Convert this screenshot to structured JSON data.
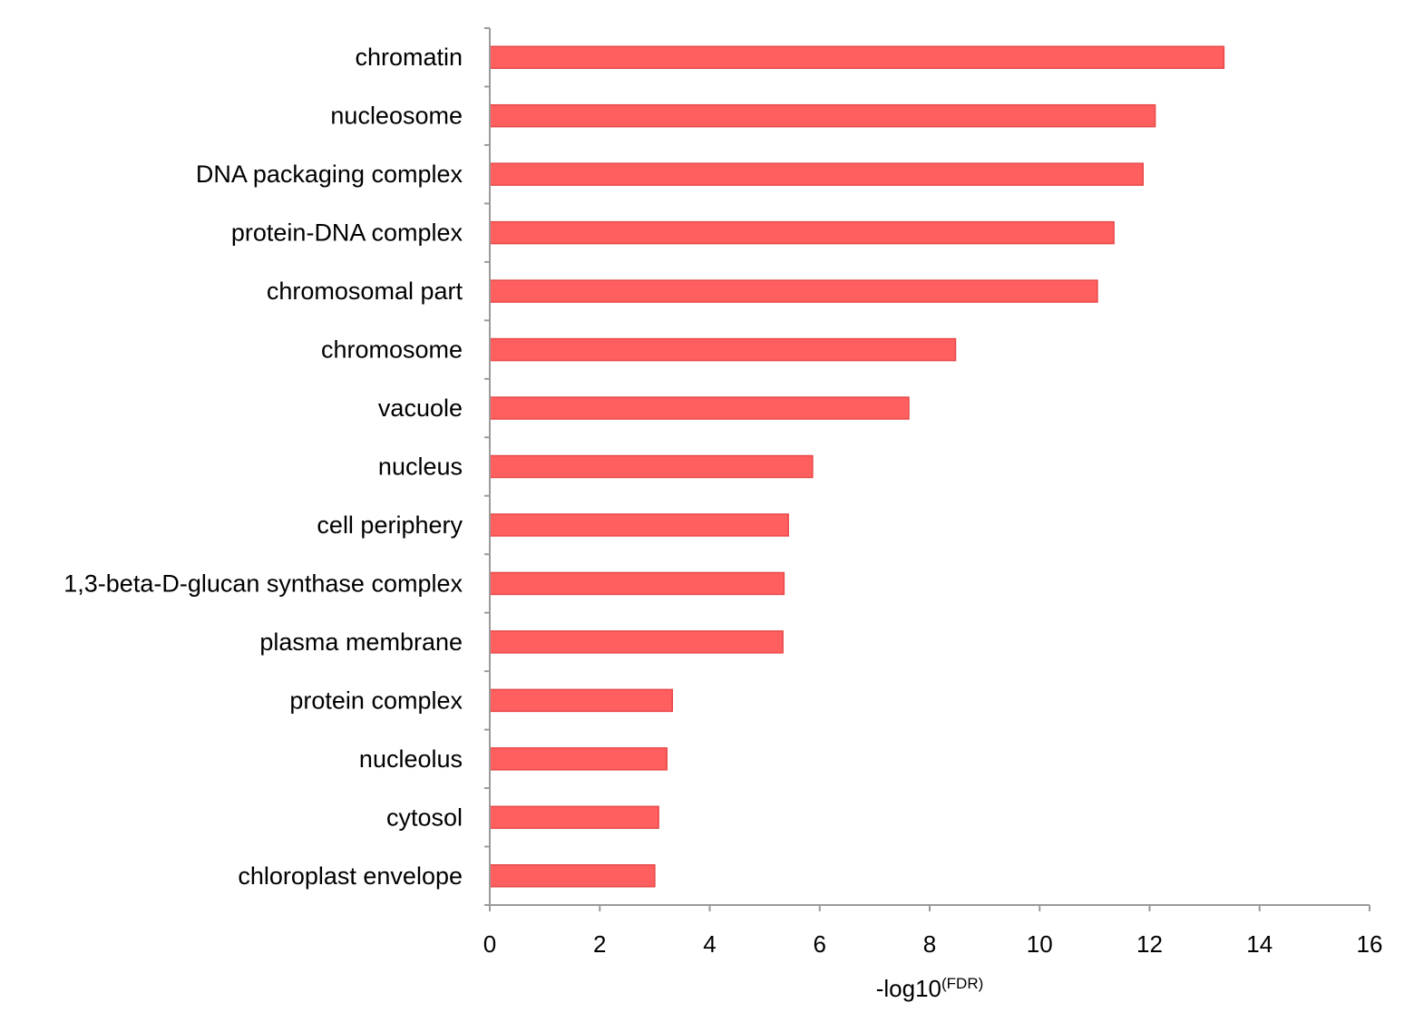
{
  "chart_data": {
    "type": "bar",
    "orientation": "horizontal",
    "categories": [
      "chromatin",
      "nucleosome",
      "DNA packaging complex",
      "protein-DNA complex",
      "chromosomal part",
      "chromosome",
      "vacuole",
      "nucleus",
      "cell periphery",
      "1,3-beta-D-glucan synthase complex",
      "plasma membrane",
      "protein complex",
      "nucleolus",
      "cytosol",
      "chloroplast envelope"
    ],
    "values": [
      13.35,
      12.1,
      11.88,
      11.35,
      11.05,
      8.47,
      7.62,
      5.87,
      5.43,
      5.35,
      5.33,
      3.32,
      3.22,
      3.07,
      3.0
    ],
    "xlabel": "-log10",
    "xlabel_superscript": "(FDR)",
    "ylabel": "",
    "xlim": [
      0,
      16
    ],
    "xticks": [
      "0",
      "2",
      "4",
      "6",
      "8",
      "10",
      "12",
      "14",
      "16"
    ],
    "bar_color": "#ff5f5f",
    "bar_edge_color": "#e84848",
    "axis_color": "#9a9a9a",
    "grid": false,
    "legend": "none"
  }
}
